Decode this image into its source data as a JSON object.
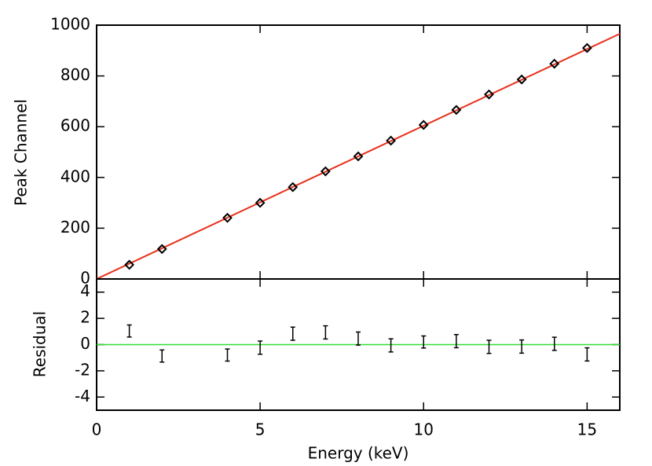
{
  "chart_data": [
    {
      "type": "scatter",
      "ylabel": "Peak Channel",
      "xlim": [
        0,
        16
      ],
      "xticks": [
        0,
        5,
        10,
        15
      ],
      "ylim": [
        0,
        1000
      ],
      "yticks": [
        0,
        200,
        400,
        600,
        800,
        1000
      ],
      "x": [
        1,
        2,
        4,
        5,
        6,
        7,
        8,
        9,
        10,
        11,
        12,
        13,
        14,
        15
      ],
      "series": [
        {
          "color": "#000000",
          "values": [
            56,
            118,
            241,
            300,
            362,
            424,
            483,
            545,
            607,
            666,
            727,
            786,
            848,
            910
          ]
        }
      ],
      "fit": {
        "color": "#e8321e",
        "x": [
          0,
          16
        ],
        "values": [
          0,
          966
        ]
      }
    },
    {
      "type": "errorbar",
      "ylabel": "Residual",
      "xlabel": "Energy (keV)",
      "xlim": [
        0,
        16
      ],
      "xticks": [
        0,
        5,
        10,
        15
      ],
      "ylim": [
        -5,
        5
      ],
      "yticks": [
        -4,
        -2,
        0,
        2,
        4
      ],
      "x": [
        1,
        2,
        4,
        5,
        6,
        7,
        8,
        9,
        10,
        11,
        12,
        13,
        14,
        15
      ],
      "values": [
        1.04,
        -0.87,
        -0.8,
        -0.23,
        0.83,
        0.93,
        0.46,
        -0.06,
        0.2,
        0.26,
        -0.17,
        -0.15,
        0.06,
        -0.75
      ],
      "errors": [
        0.46,
        0.46,
        0.46,
        0.5,
        0.5,
        0.5,
        0.5,
        0.5,
        0.46,
        0.5,
        0.5,
        0.5,
        0.5,
        0.5
      ],
      "color": "#000000",
      "refline_color": "#33dd33"
    }
  ]
}
